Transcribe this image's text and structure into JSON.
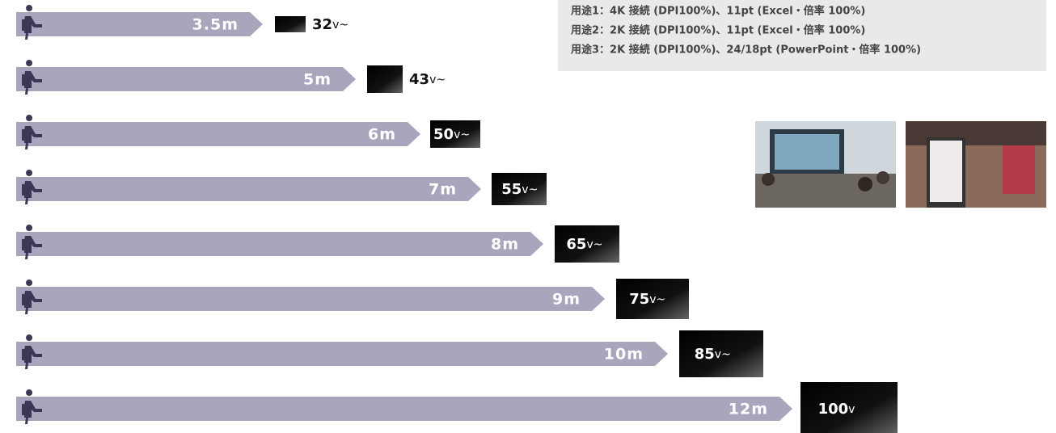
{
  "notes": [
    "用途1：4K 接続 (DPI100%)、11pt (Excel・倍率 100%)",
    "用途2：2K 接続 (DPI100%)、11pt (Excel・倍率 100%)",
    "用途3：2K 接続 (DPI100%)、24/18pt (PowerPoint・倍率 100%)"
  ],
  "rows": [
    {
      "distance": "3.5m",
      "size": "32",
      "unit": "v~"
    },
    {
      "distance": "5m",
      "size": "43",
      "unit": "v~"
    },
    {
      "distance": "6m",
      "size": "50",
      "unit": "v~"
    },
    {
      "distance": "7m",
      "size": "55",
      "unit": "v~"
    },
    {
      "distance": "8m",
      "size": "65",
      "unit": "v~"
    },
    {
      "distance": "9m",
      "size": "75",
      "unit": "v~"
    },
    {
      "distance": "10m",
      "size": "85",
      "unit": "v~"
    },
    {
      "distance": "12m",
      "size": "100",
      "unit": "v"
    }
  ]
}
